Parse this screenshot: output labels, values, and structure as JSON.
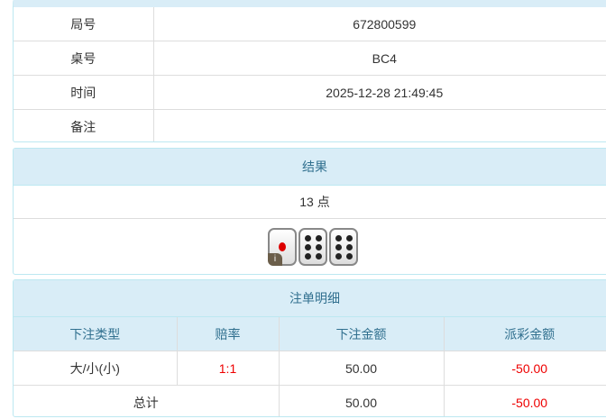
{
  "info": {
    "rows": [
      {
        "label": "局号",
        "value": "672800599"
      },
      {
        "label": "桌号",
        "value": "BC4"
      },
      {
        "label": "时间",
        "value": "2025-12-28 21:49:45"
      },
      {
        "label": "备注",
        "value": ""
      }
    ]
  },
  "result": {
    "title": "结果",
    "points": "13 点",
    "dice": [
      1,
      6,
      6
    ],
    "info_badge": "i"
  },
  "bets": {
    "title": "注单明细",
    "headers": [
      "下注类型",
      "赔率",
      "下注金额",
      "派彩金额"
    ],
    "rows": [
      {
        "type": "大/小(小)",
        "odds": "1:1",
        "amount": "50.00",
        "payout": "-50.00"
      }
    ],
    "total": {
      "label": "总计",
      "amount": "50.00",
      "payout": "-50.00"
    }
  },
  "colors": {
    "header_bg": "#d9edf7",
    "header_text": "#31708f",
    "negative": "#e00000"
  }
}
